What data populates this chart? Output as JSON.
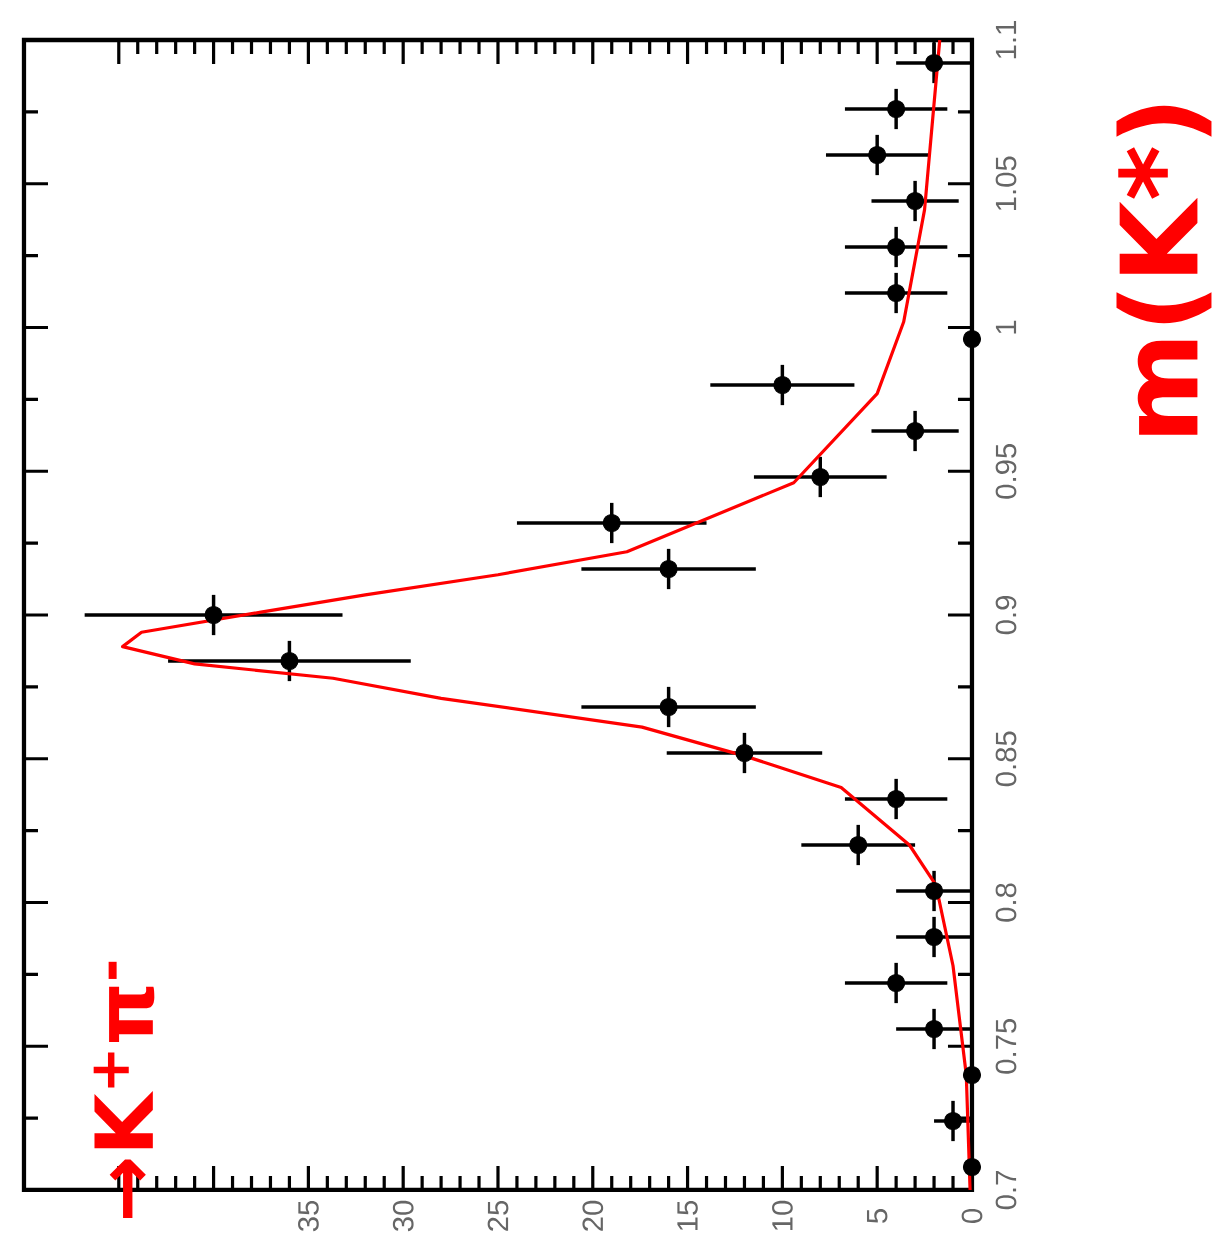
{
  "chart_data": {
    "type": "scatter",
    "xlim": [
      50,
      0
    ],
    "xticks": [
      {
        "value": 0,
        "label": "0"
      },
      {
        "value": 5,
        "label": "5"
      },
      {
        "value": 10,
        "label": "10"
      },
      {
        "value": 15,
        "label": "15"
      },
      {
        "value": 20,
        "label": "20"
      },
      {
        "value": 25,
        "label": "25"
      },
      {
        "value": 30,
        "label": "30"
      },
      {
        "value": 35,
        "label": "35"
      },
      {
        "value": 40,
        "label": null
      },
      {
        "value": 45,
        "label": null
      }
    ],
    "ylim": [
      0.7,
      1.1
    ],
    "yticks": [
      {
        "value": 0.7,
        "label": "0.7"
      },
      {
        "value": 0.75,
        "label": "0.75"
      },
      {
        "value": 0.8,
        "label": "0.8"
      },
      {
        "value": 0.85,
        "label": "0.85"
      },
      {
        "value": 0.9,
        "label": "0.9"
      },
      {
        "value": 0.95,
        "label": "0.95"
      },
      {
        "value": 1,
        "label": "1"
      },
      {
        "value": 1.05,
        "label": "1.05"
      },
      {
        "value": 1.1,
        "label": "1.1"
      }
    ],
    "grid": false,
    "series": [
      {
        "type": "scatter",
        "marker": "circle",
        "color": "#000000",
        "x": [
          0,
          1,
          0,
          2,
          4,
          2,
          2,
          6,
          4,
          12,
          16,
          36,
          40,
          16,
          19,
          8,
          3,
          10,
          0,
          4,
          4,
          3,
          5,
          4,
          2
        ],
        "values": [
          0.708,
          0.724,
          0.74,
          0.756,
          0.772,
          0.788,
          0.804,
          0.82,
          0.836,
          0.852,
          0.868,
          0.884,
          0.9,
          0.916,
          0.932,
          0.948,
          0.964,
          0.98,
          0.996,
          1.012,
          1.028,
          1.044,
          1.06,
          1.076,
          1.092
        ],
        "xerrors": [
          null,
          1,
          null,
          2,
          2.7,
          2,
          2,
          3,
          2.7,
          4.1,
          4.6,
          6.4,
          6.8,
          4.6,
          5,
          3.5,
          2.3,
          3.8,
          null,
          2.7,
          2.7,
          2.3,
          2.7,
          2.7,
          2
        ],
        "errors": [
          0.007,
          0.007,
          0.007,
          0.007,
          0.007,
          0.007,
          0.007,
          0.007,
          0.007,
          0.007,
          0.007,
          0.007,
          0.007,
          0.007,
          0.007,
          0.007,
          0.007,
          0.007,
          0.007,
          0.007,
          0.007,
          0.007,
          0.007,
          0.007,
          0.007
        ]
      },
      {
        "type": "line",
        "marker": "none",
        "color": "#ff0000",
        "x": [
          0.1,
          0.3,
          1.0,
          1.9,
          3.3,
          6.9,
          12,
          17.4,
          28,
          33.7,
          41,
          44.8,
          43.8,
          37.5,
          32,
          25,
          18.2,
          9.4,
          5.0,
          3.6,
          2.5,
          1.7
        ],
        "values": [
          0.7,
          0.74,
          0.778,
          0.806,
          0.82,
          0.84,
          0.851,
          0.861,
          0.871,
          0.878,
          0.883,
          0.889,
          0.894,
          0.901,
          0.907,
          0.914,
          0.922,
          0.946,
          0.977,
          1.002,
          1.041,
          1.1
        ]
      }
    ],
    "annotations": [
      "m(K*)",
      "→K$^{+}$π$^{-}$"
    ]
  }
}
